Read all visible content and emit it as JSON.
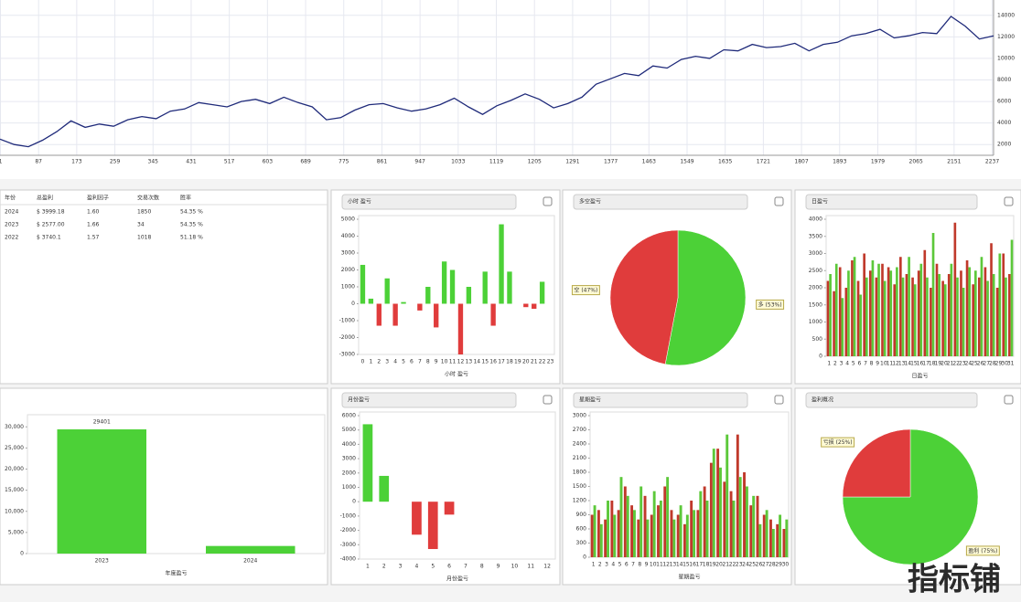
{
  "table": {
    "headers": [
      "年份",
      "总盈利",
      "盈利因子",
      "交易次数",
      "胜率"
    ],
    "rows": [
      [
        "2024",
        "$ 3999.18",
        "1.60",
        "1850",
        "54.35 %"
      ],
      [
        "2023",
        "$ 2577.00",
        "1.66",
        "34",
        "54.35 %"
      ],
      [
        "2022",
        "$ 3740.1",
        "1.57",
        "1018",
        "51.18 %"
      ]
    ]
  },
  "watermark": "指标铺",
  "chart_data": [
    {
      "type": "line",
      "color": "#1f2a7a",
      "grid": true,
      "x": [
        0,
        32,
        64,
        96,
        128,
        160,
        192,
        224,
        256,
        288,
        320,
        352,
        384,
        416,
        448,
        480,
        512,
        544,
        576,
        608,
        640,
        672,
        704,
        736,
        768,
        800,
        832,
        864,
        896,
        928,
        960,
        992,
        1024,
        1056,
        1088,
        1120,
        1152,
        1184,
        1216,
        1248,
        1280,
        1312,
        1344,
        1376,
        1408,
        1440,
        1472,
        1504,
        1536,
        1568,
        1600,
        1632,
        1664,
        1696,
        1728,
        1760,
        1792,
        1824,
        1856,
        1888,
        1920,
        1952,
        1984,
        2016,
        2048,
        2080,
        2112,
        2144,
        2176,
        2208,
        2240
      ],
      "values": [
        2500,
        2000,
        1800,
        2400,
        3200,
        4200,
        3600,
        3900,
        3700,
        4300,
        4600,
        4400,
        5100,
        5300,
        5900,
        5700,
        5500,
        6000,
        6200,
        5800,
        6400,
        5900,
        5500,
        4300,
        4500,
        5200,
        5700,
        5800,
        5400,
        5100,
        5300,
        5700,
        6300,
        5500,
        4800,
        5600,
        6100,
        6700,
        6200,
        5400,
        5800,
        6400,
        7600,
        8100,
        8600,
        8400,
        9300,
        9100,
        9900,
        10200,
        10000,
        10800,
        10700,
        11300,
        11000,
        11100,
        11400,
        10700,
        11300,
        11500,
        12100,
        12300,
        12700,
        11900,
        12100,
        12400,
        12300,
        13900,
        13000,
        11800,
        12100
      ],
      "xlim": [
        0,
        2240
      ],
      "xticks": [
        1,
        87,
        173,
        259,
        345,
        431,
        517,
        603,
        689,
        775,
        861,
        947,
        1033,
        1119,
        1205,
        1291,
        1377,
        1463,
        1549,
        1635,
        1721,
        1807,
        1893,
        1979,
        2065,
        2151,
        2237
      ],
      "ylim": [
        1000,
        15000
      ],
      "yticks": [
        2000,
        4000,
        6000,
        8000,
        10000,
        12000,
        14000
      ]
    },
    {
      "type": "bar",
      "title": "小时 盈亏",
      "x_label": "小时 盈亏",
      "positive_color": "#4cd137",
      "negative_color": "#e03c3c",
      "categories": [
        "0",
        "1",
        "2",
        "3",
        "4",
        "5",
        "6",
        "7",
        "8",
        "9",
        "10",
        "11",
        "12",
        "13",
        "14",
        "15",
        "16",
        "17",
        "18",
        "19",
        "20",
        "21",
        "22",
        "23"
      ],
      "values": [
        2300,
        300,
        -1300,
        1500,
        -1300,
        100,
        0,
        -400,
        1000,
        -1400,
        2500,
        2000,
        -3000,
        1000,
        0,
        1900,
        -1300,
        4700,
        1900,
        0,
        -200,
        -300,
        1300,
        0
      ],
      "ylim": [
        -3000,
        5000
      ],
      "yticks": [
        -3000,
        -2000,
        -1000,
        0,
        1000,
        2000,
        3000,
        4000,
        5000
      ]
    },
    {
      "type": "pie",
      "title": "多空盈亏",
      "values": [
        53,
        47
      ],
      "value_labels": [
        "多 (53%)",
        "空 (47%)"
      ],
      "colors": [
        "#4cd137",
        "#e03c3c"
      ]
    },
    {
      "type": "bar",
      "title": "日盈亏",
      "x_label": "日盈亏",
      "categories": [
        "1",
        "2",
        "3",
        "4",
        "5",
        "6",
        "7",
        "8",
        "9",
        "10",
        "11",
        "12",
        "13",
        "14",
        "15",
        "16",
        "17",
        "18",
        "19",
        "20",
        "21",
        "22",
        "23",
        "24",
        "25",
        "26",
        "27",
        "28",
        "29",
        "30",
        "31"
      ],
      "series": [
        {
          "name": "亏损",
          "color": "#c0392b",
          "values": [
            2200,
            1900,
            2600,
            2000,
            2800,
            2200,
            3000,
            2500,
            2300,
            2700,
            2600,
            2100,
            2900,
            2400,
            2300,
            2500,
            3100,
            2000,
            2700,
            2200,
            2400,
            3900,
            2500,
            2800,
            2100,
            2300,
            2600,
            3300,
            2000,
            3000,
            2400
          ]
        },
        {
          "name": "盈利",
          "color": "#5cc83a",
          "values": [
            2400,
            2700,
            1700,
            2500,
            2900,
            1800,
            2300,
            2800,
            2700,
            2200,
            2500,
            2600,
            2300,
            2900,
            2100,
            2700,
            2300,
            3600,
            2400,
            2100,
            2700,
            2300,
            2000,
            2600,
            2500,
            2900,
            2200,
            2400,
            3000,
            2300,
            3400
          ]
        }
      ],
      "ylim": [
        0,
        4000
      ],
      "yticks": [
        0,
        500,
        1000,
        1500,
        2000,
        2500,
        3000,
        3500,
        4000
      ]
    },
    {
      "type": "bar",
      "x_label": "年度盈亏",
      "color": "#4cd137",
      "categories": [
        "2023",
        "2024"
      ],
      "values": [
        29401,
        1800
      ],
      "value_labels": [
        "29401"
      ],
      "ylim": [
        0,
        32000
      ],
      "yticks": [
        0,
        {
          "value": 5000,
          "label": "5,000"
        },
        {
          "value": 10000,
          "label": "10,000"
        },
        {
          "value": 15000,
          "label": "15,000"
        },
        {
          "value": 20000,
          "label": "20,000"
        },
        {
          "value": 25000,
          "label": "25,000"
        },
        {
          "value": 30000,
          "label": "30,000"
        }
      ]
    },
    {
      "type": "bar",
      "title": "月份盈亏",
      "x_label": "月份盈亏",
      "positive_color": "#4cd137",
      "negative_color": "#e03c3c",
      "categories": [
        "1",
        "2",
        "3",
        "4",
        "5",
        "6",
        "7",
        "8",
        "9",
        "10",
        "11",
        "12"
      ],
      "values": [
        5400,
        1800,
        0,
        -2300,
        -3300,
        -900,
        0,
        0,
        0,
        0,
        0,
        0
      ],
      "ylim": [
        -4000,
        6000
      ],
      "yticks": [
        -4000,
        -3000,
        -2000,
        -1000,
        0,
        1000,
        2000,
        3000,
        4000,
        5000,
        6000
      ]
    },
    {
      "type": "bar",
      "title": "星期盈亏",
      "x_label": "星期盈亏",
      "categories": [
        "1",
        "2",
        "3",
        "4",
        "5",
        "6",
        "7",
        "8",
        "9",
        "10",
        "11",
        "12",
        "13",
        "14",
        "15",
        "16",
        "17",
        "18",
        "19",
        "20",
        "21",
        "22",
        "23",
        "24",
        "25",
        "26",
        "27",
        "28",
        "29",
        "30"
      ],
      "series": [
        {
          "name": "亏损",
          "color": "#c0392b",
          "values": [
            900,
            1000,
            800,
            1200,
            1000,
            1500,
            1100,
            800,
            1300,
            900,
            1100,
            1500,
            1000,
            900,
            700,
            1200,
            1000,
            1500,
            2000,
            2300,
            1600,
            1400,
            2600,
            1800,
            1100,
            1300,
            900,
            800,
            700,
            600
          ]
        },
        {
          "name": "盈利",
          "color": "#5cc83a",
          "values": [
            1100,
            700,
            1200,
            900,
            1700,
            1300,
            1000,
            1500,
            800,
            1400,
            1200,
            1700,
            800,
            1100,
            900,
            1000,
            1400,
            1200,
            2300,
            1900,
            2600,
            1200,
            1700,
            1500,
            1300,
            700,
            1000,
            600,
            900,
            800
          ]
        }
      ],
      "ylim": [
        0,
        3000
      ],
      "yticks": [
        0,
        300,
        600,
        900,
        1200,
        1500,
        1800,
        2100,
        2400,
        2700,
        3000
      ]
    },
    {
      "type": "pie",
      "title": "盈利概况",
      "values": [
        75,
        25
      ],
      "value_labels": [
        "盈利 (75%)",
        "亏损 (25%)"
      ],
      "colors": [
        "#4cd137",
        "#e03c3c"
      ]
    }
  ]
}
